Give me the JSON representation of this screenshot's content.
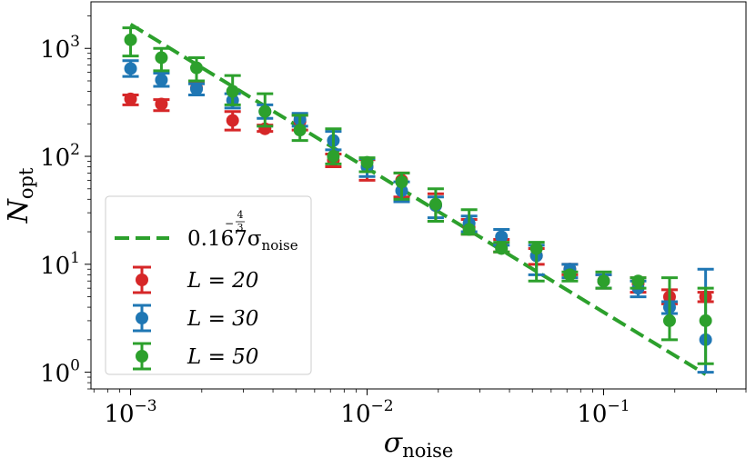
{
  "chart_data": {
    "type": "scatter",
    "x_scale": "log",
    "y_scale": "log",
    "xlabel": "σ",
    "xlabel_sub": "noise",
    "ylabel": "N",
    "ylabel_sub": "opt",
    "xlim": [
      0.00068,
      0.4
    ],
    "ylim": [
      0.7,
      2700
    ],
    "grid": false,
    "legend_placement": "bottom-left",
    "x_ticks": [
      {
        "value": 0.001,
        "base": "10",
        "exp": "−3"
      },
      {
        "value": 0.01,
        "base": "10",
        "exp": "−2"
      },
      {
        "value": 0.1,
        "base": "10",
        "exp": "−1"
      }
    ],
    "y_ticks": [
      {
        "value": 1,
        "base": "10",
        "exp": "0"
      },
      {
        "value": 10,
        "base": "10",
        "exp": "1"
      },
      {
        "value": 100,
        "base": "10",
        "exp": "2"
      },
      {
        "value": 1000,
        "base": "10",
        "exp": "3"
      }
    ],
    "fit": {
      "name_coef": "0.167σ",
      "name_sub": "noise",
      "name_exp_num": "4",
      "name_exp_den": "3",
      "coefficient": 0.167,
      "exponent": -1.3333,
      "x_range": [
        0.001,
        0.27
      ],
      "color": "#2ca02c"
    },
    "series": [
      {
        "name": "L = 20",
        "color": "#d62728",
        "x": [
          0.001,
          0.00135,
          0.0019,
          0.0027,
          0.0037,
          0.0052,
          0.0072,
          0.01,
          0.014,
          0.0195,
          0.027,
          0.037,
          0.052,
          0.072,
          0.1,
          0.14,
          0.19,
          0.27
        ],
        "y": [
          340,
          305,
          430,
          215,
          180,
          210,
          92,
          80,
          60,
          35,
          22,
          15,
          12,
          9,
          7,
          6.6,
          5,
          5
        ],
        "y_low": [
          300,
          265,
          370,
          175,
          170,
          175,
          80,
          60,
          42,
          25,
          19,
          13,
          10,
          8,
          6,
          5.5,
          4.3,
          4.5
        ],
        "y_high": [
          370,
          335,
          480,
          260,
          195,
          240,
          105,
          93,
          70,
          45,
          26,
          17,
          14,
          10,
          8,
          7.5,
          5.8,
          5.5
        ]
      },
      {
        "name": "L = 30",
        "color": "#1f77b4",
        "x": [
          0.001,
          0.00135,
          0.0019,
          0.0027,
          0.0037,
          0.0052,
          0.0072,
          0.01,
          0.014,
          0.0195,
          0.027,
          0.037,
          0.052,
          0.072,
          0.1,
          0.14,
          0.19,
          0.27
        ],
        "y": [
          650,
          510,
          420,
          330,
          260,
          220,
          140,
          80,
          48,
          35,
          24,
          18,
          12,
          9,
          7,
          6,
          4,
          2
        ],
        "y_low": [
          550,
          445,
          370,
          280,
          225,
          190,
          115,
          65,
          38,
          27,
          20,
          15,
          8,
          7.5,
          6,
          5,
          3.5,
          1
        ],
        "y_high": [
          770,
          590,
          470,
          380,
          300,
          250,
          170,
          95,
          58,
          42,
          28,
          21,
          15,
          10,
          8,
          7,
          4.5,
          9
        ]
      },
      {
        "name": "L = 50",
        "color": "#2ca02c",
        "x": [
          0.001,
          0.00135,
          0.0019,
          0.0027,
          0.0037,
          0.0052,
          0.0072,
          0.01,
          0.014,
          0.0195,
          0.027,
          0.037,
          0.052,
          0.072,
          0.1,
          0.14,
          0.19,
          0.27
        ],
        "y": [
          1200,
          820,
          660,
          400,
          260,
          175,
          100,
          88,
          58,
          36,
          21,
          14,
          14,
          8,
          7,
          7,
          3,
          3
        ],
        "y_low": [
          850,
          620,
          500,
          300,
          190,
          140,
          85,
          72,
          40,
          25,
          19,
          13,
          7,
          7,
          6,
          6,
          2,
          1.2
        ],
        "y_high": [
          1550,
          1000,
          820,
          560,
          380,
          240,
          180,
          97,
          70,
          50,
          32,
          16,
          16,
          8.5,
          8.5,
          7.5,
          7.5,
          6
        ]
      }
    ]
  }
}
